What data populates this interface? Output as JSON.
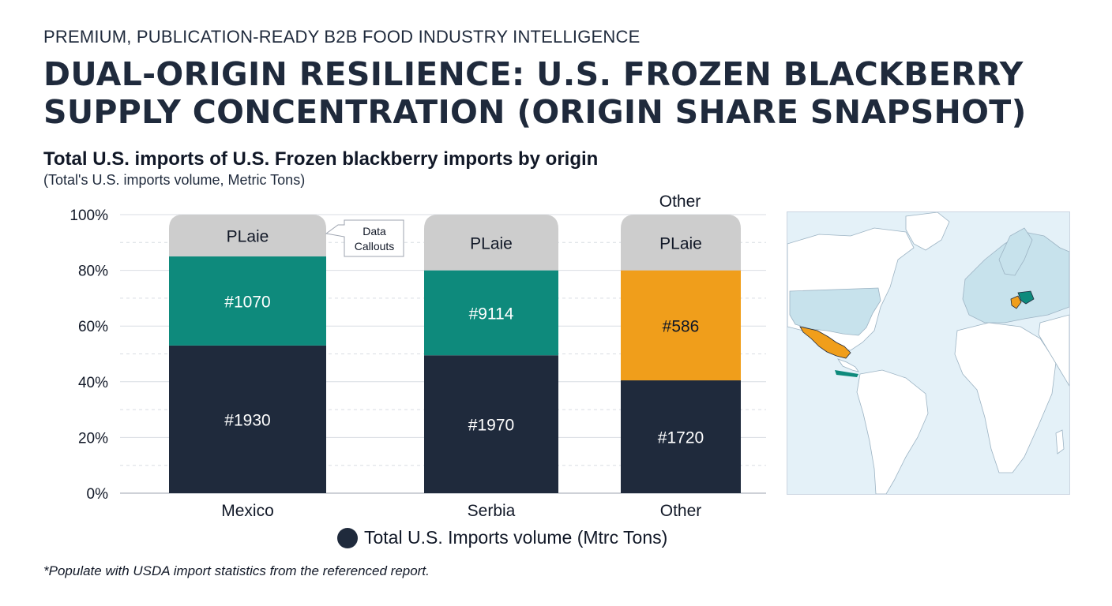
{
  "header": {
    "eyebrow": "PREMIUM, PUBLICATION-READY B2B FOOD INDUSTRY INTELLIGENCE",
    "title": "DUAL-ORIGIN RESILIENCE: U.S. FROZEN BLACKBERRY SUPPLY CONCENTRATION (ORIGIN SHARE SNAPSHOT)"
  },
  "chart_data": {
    "type": "bar",
    "stacked": true,
    "title": "Total U.S. imports of U.S. Frozen blackberry imports by origin",
    "subtitle": "(Total's U.S. imports volume, Metric Tons)",
    "xlabel": "",
    "ylabel": "",
    "ylim": [
      0,
      100
    ],
    "yticks": [
      "0%",
      "20%",
      "40%",
      "60%",
      "80%",
      "100%"
    ],
    "grid": true,
    "categories": [
      "Mexico",
      "Serbia",
      "Other"
    ],
    "series": [
      {
        "name": "Total U.S. Imports volume (Mtrc Tons)",
        "values": [
          53,
          49.5,
          40.5
        ],
        "labels": [
          "#1930",
          "#1970",
          "#1720"
        ],
        "color": "#1f2a3c"
      },
      {
        "values": [
          32,
          30.5,
          39.5
        ],
        "labels": [
          "#1070",
          "#9114",
          "#586"
        ],
        "colors": [
          "#0e8a7c",
          "#0e8a7c",
          "#f09e1b"
        ]
      },
      {
        "values": [
          15,
          20,
          20
        ],
        "labels": [
          "PLaie",
          "PLaie",
          "PLaie"
        ],
        "color": "#cdcdcd"
      }
    ],
    "annotations": [
      "Data Callouts",
      "Other"
    ],
    "legend": {
      "position": "bottom",
      "label": "Total U.S. Imports volume (Mtrc Tons)"
    }
  },
  "footnote": "*Populate with USDA import statistics from the referenced report.",
  "map": {
    "highlight_colors": [
      "#f09e1b",
      "#0e8a7c"
    ]
  }
}
